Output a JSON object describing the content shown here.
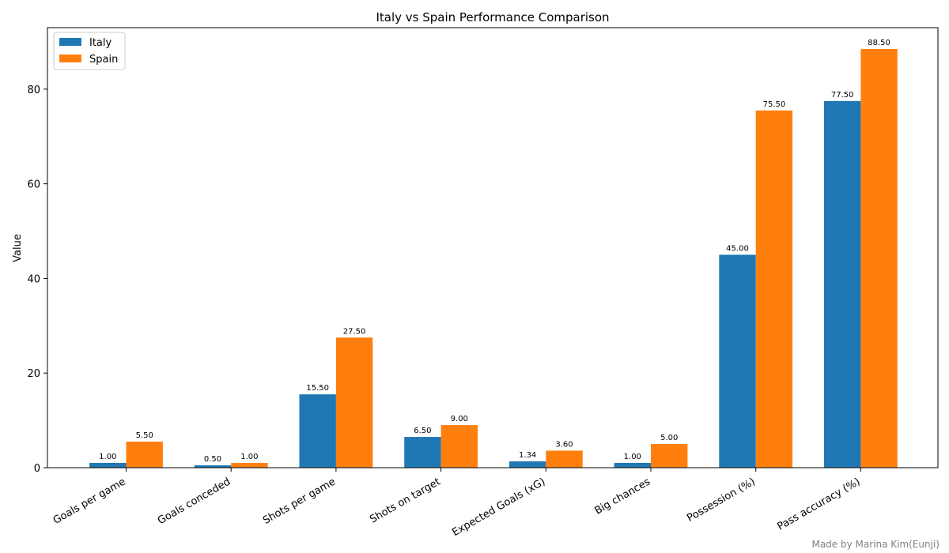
{
  "chart_data": {
    "type": "bar",
    "title": "Italy vs Spain Performance Comparison",
    "xlabel": "",
    "ylabel": "Value",
    "ylim": [
      0,
      93
    ],
    "yticks": [
      0,
      20,
      40,
      60,
      80
    ],
    "grid": false,
    "legend_position": "top-left",
    "categories": [
      "Goals per game",
      "Goals conceded",
      "Shots per game",
      "Shots on target",
      "Expected Goals (xG)",
      "Big chances",
      "Possession (%)",
      "Pass accuracy (%)"
    ],
    "series": [
      {
        "name": "Italy",
        "color": "#1f77b4",
        "values": [
          1.0,
          0.5,
          15.5,
          6.5,
          1.34,
          1.0,
          45.0,
          77.5
        ],
        "labels": [
          "1.00",
          "0.50",
          "15.50",
          "6.50",
          "1.34",
          "1.00",
          "45.00",
          "77.50"
        ]
      },
      {
        "name": "Spain",
        "color": "#ff7f0e",
        "values": [
          5.5,
          1.0,
          27.5,
          9.0,
          3.6,
          5.0,
          75.5,
          88.5
        ],
        "labels": [
          "5.50",
          "1.00",
          "27.50",
          "9.00",
          "3.60",
          "5.00",
          "75.50",
          "88.50"
        ]
      }
    ]
  },
  "credit": "Made by Marina Kim(Eunji)"
}
